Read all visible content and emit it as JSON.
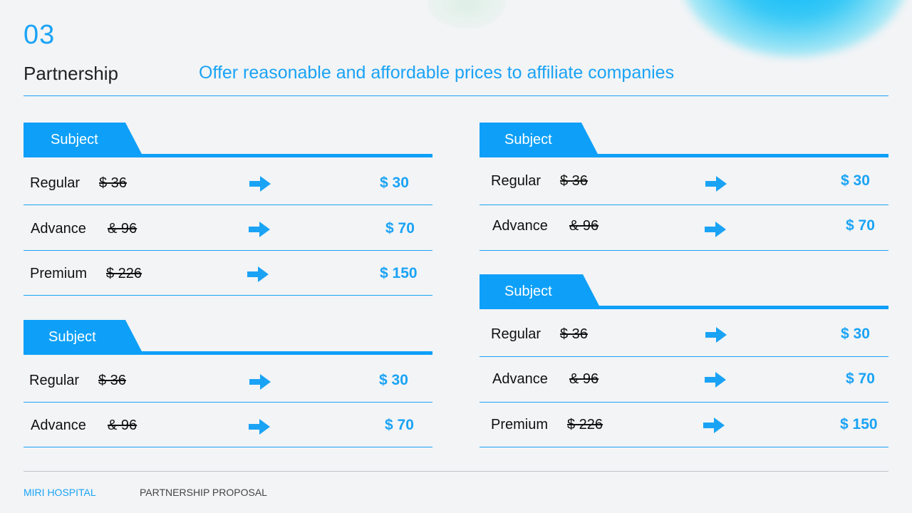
{
  "header": {
    "section_number": "03",
    "title": "Partnership",
    "subtitle": "Offer reasonable and affordable prices to affiliate companies"
  },
  "colors": {
    "accent": "#1aa3f5",
    "tab": "#0ea0f8"
  },
  "icons": {
    "row_arrow": "right-arrow-icon"
  },
  "tables": [
    {
      "subject": "Subject",
      "rows": [
        {
          "name": "Regular",
          "old_price": "$ 36",
          "new_price": "$ 30"
        },
        {
          "name": "Advance",
          "old_price": "& 96",
          "new_price": "$ 70"
        },
        {
          "name": "Premium",
          "old_price": "$ 226",
          "new_price": "$ 150"
        }
      ]
    },
    {
      "subject": "Subject",
      "rows": [
        {
          "name": "Regular",
          "old_price": "$ 36",
          "new_price": "$ 30"
        },
        {
          "name": "Advance",
          "old_price": "& 96",
          "new_price": "$ 70"
        }
      ]
    },
    {
      "subject": "Subject",
      "rows": [
        {
          "name": "Regular",
          "old_price": "$ 36",
          "new_price": "$ 30"
        },
        {
          "name": "Advance",
          "old_price": "& 96",
          "new_price": "$ 70"
        }
      ]
    },
    {
      "subject": "Subject",
      "rows": [
        {
          "name": "Regular",
          "old_price": "$ 36",
          "new_price": "$ 30"
        },
        {
          "name": "Advance",
          "old_price": "& 96",
          "new_price": "$ 70"
        },
        {
          "name": "Premium",
          "old_price": "$ 226",
          "new_price": "$ 150"
        }
      ]
    }
  ],
  "footer": {
    "left": "MIRI HOSPITAL",
    "right": "PARTNERSHIP PROPOSAL"
  }
}
